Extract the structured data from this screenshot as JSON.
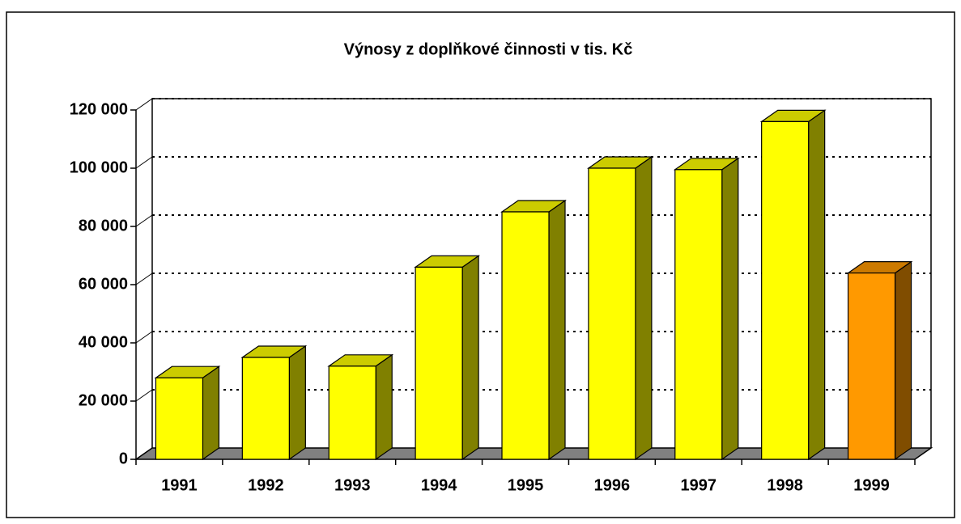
{
  "chart_data": {
    "type": "bar3d",
    "title": "Výnosy z doplňkové činnosti v tis. Kč",
    "categories": [
      "1991",
      "1992",
      "1993",
      "1994",
      "1995",
      "1996",
      "1997",
      "1998",
      "1999"
    ],
    "values": [
      28000,
      35000,
      32000,
      66000,
      85000,
      100000,
      99500,
      116000,
      64000
    ],
    "colors": [
      "#ffff00",
      "#ffff00",
      "#ffff00",
      "#ffff00",
      "#ffff00",
      "#ffff00",
      "#ffff00",
      "#ffff00",
      "#ff9900"
    ],
    "ylim": [
      0,
      120000
    ],
    "yticks": [
      0,
      {
        "value": 20000,
        "label": "20 000"
      },
      {
        "value": 40000,
        "label": "40 000"
      },
      {
        "value": 60000,
        "label": "60 000"
      },
      {
        "value": 80000,
        "label": "80 000"
      },
      {
        "value": 100000,
        "label": "100 000"
      },
      {
        "value": 120000,
        "label": "120 000"
      }
    ],
    "grid": true
  }
}
